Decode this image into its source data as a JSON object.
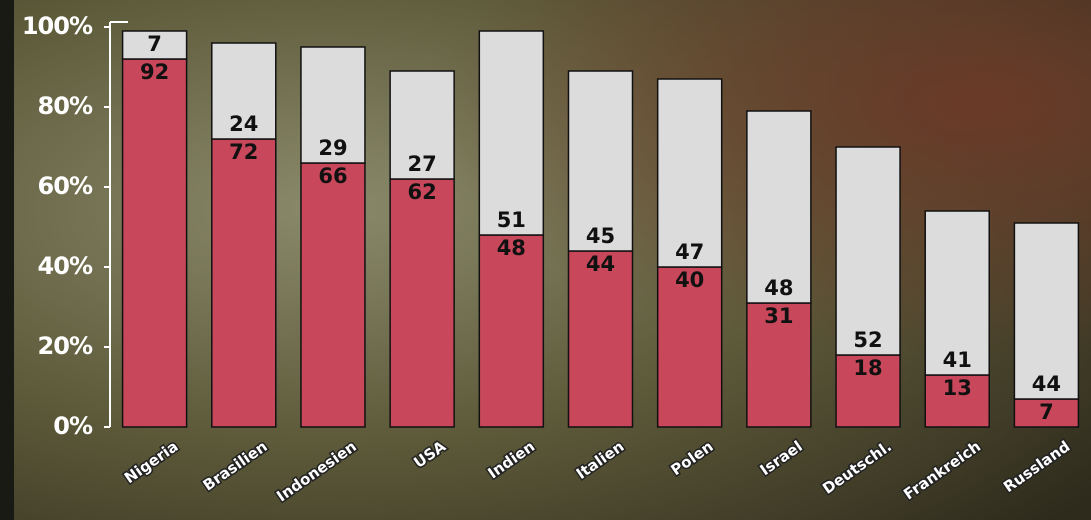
{
  "chart_data": {
    "type": "stacked-bar",
    "categories": [
      "Nigeria",
      "Brasilien",
      "Indonesien",
      "USA",
      "Indien",
      "Italien",
      "Polen",
      "Israel",
      "Deutschl.",
      "Frankreich",
      "Russland"
    ],
    "series": [
      {
        "color": "#c8475a",
        "values": [
          92,
          72,
          66,
          62,
          48,
          44,
          40,
          31,
          18,
          13,
          7
        ]
      },
      {
        "color": "#dcdcdc",
        "values": [
          7,
          24,
          29,
          27,
          51,
          45,
          47,
          48,
          52,
          41,
          44
        ]
      }
    ],
    "ylim": [
      0,
      100
    ],
    "yticks": [
      {
        "value": 0,
        "label": "0%"
      },
      {
        "value": 20,
        "label": "20%"
      },
      {
        "value": 40,
        "label": "40%"
      },
      {
        "value": 60,
        "label": "60%"
      },
      {
        "value": 80,
        "label": "80%"
      },
      {
        "value": 100,
        "label": "100%"
      }
    ]
  }
}
